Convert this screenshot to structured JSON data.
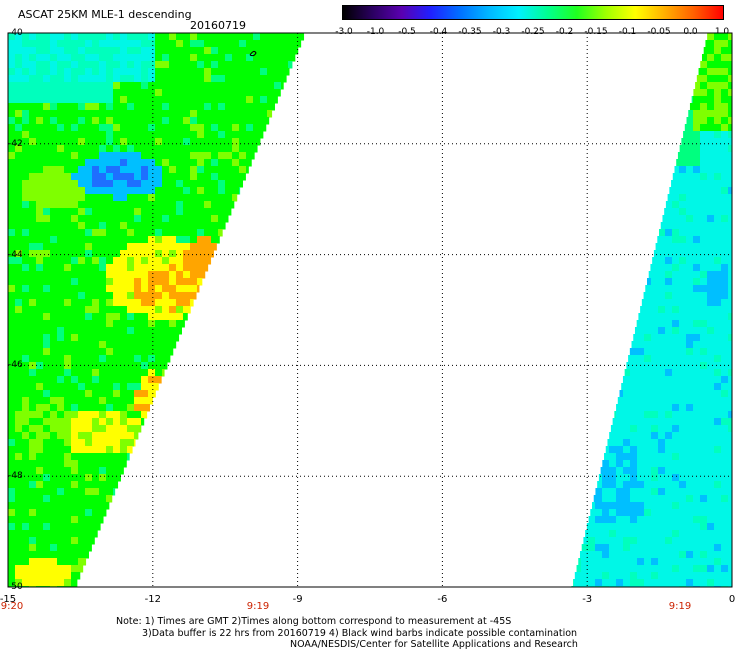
{
  "header": {
    "title": "ASCAT 25KM MLE-1 descending",
    "date": "20160719"
  },
  "colorbar": {
    "ticks": [
      "-3.0",
      "-1.0",
      "-0.5",
      "-0.4",
      "-0.35",
      "-0.3",
      "-0.25",
      "-0.2",
      "-0.15",
      "-0.1",
      "-0.05",
      "0.0",
      "1.0"
    ],
    "colors": [
      "#000000",
      "#2a0060",
      "#5a00b0",
      "#2020ff",
      "#0070ff",
      "#00b8ff",
      "#00f0ff",
      "#00ff90",
      "#20ff20",
      "#a0ff00",
      "#ffff00",
      "#ffb000",
      "#ff6000",
      "#ff0000"
    ]
  },
  "map": {
    "lat_range": [
      -50,
      -40
    ],
    "lon_range": [
      -15,
      0
    ],
    "y_ticks": [
      "-40",
      "-42",
      "-44",
      "-46",
      "-48",
      "-50"
    ],
    "x_ticks": [
      "-15",
      "-12",
      "-9",
      "-6",
      "-3",
      "0"
    ],
    "pass_times": [
      "9:20",
      "9:19",
      "9:19"
    ],
    "palette": {
      "cyan": "#00f7e7",
      "aqua": "#00ffbd",
      "green_light": "#00ff7f",
      "green": "#00ff00",
      "lime": "#7fff00",
      "yellow": "#ffff00",
      "orange": "#ffa500",
      "blue_light": "#00bfff",
      "blue": "#1e6fff"
    }
  },
  "footer": {
    "note_line1": "Note: 1) Times are GMT 2)Times along bottom correspond to measurement at -45S",
    "note_line2": "3)Data buffer is 22 hrs from 20160719 4) Black wind barbs indicate possible contamination",
    "credit": "NOAA/NESDIS/Center for Satellite Applications and Research"
  }
}
